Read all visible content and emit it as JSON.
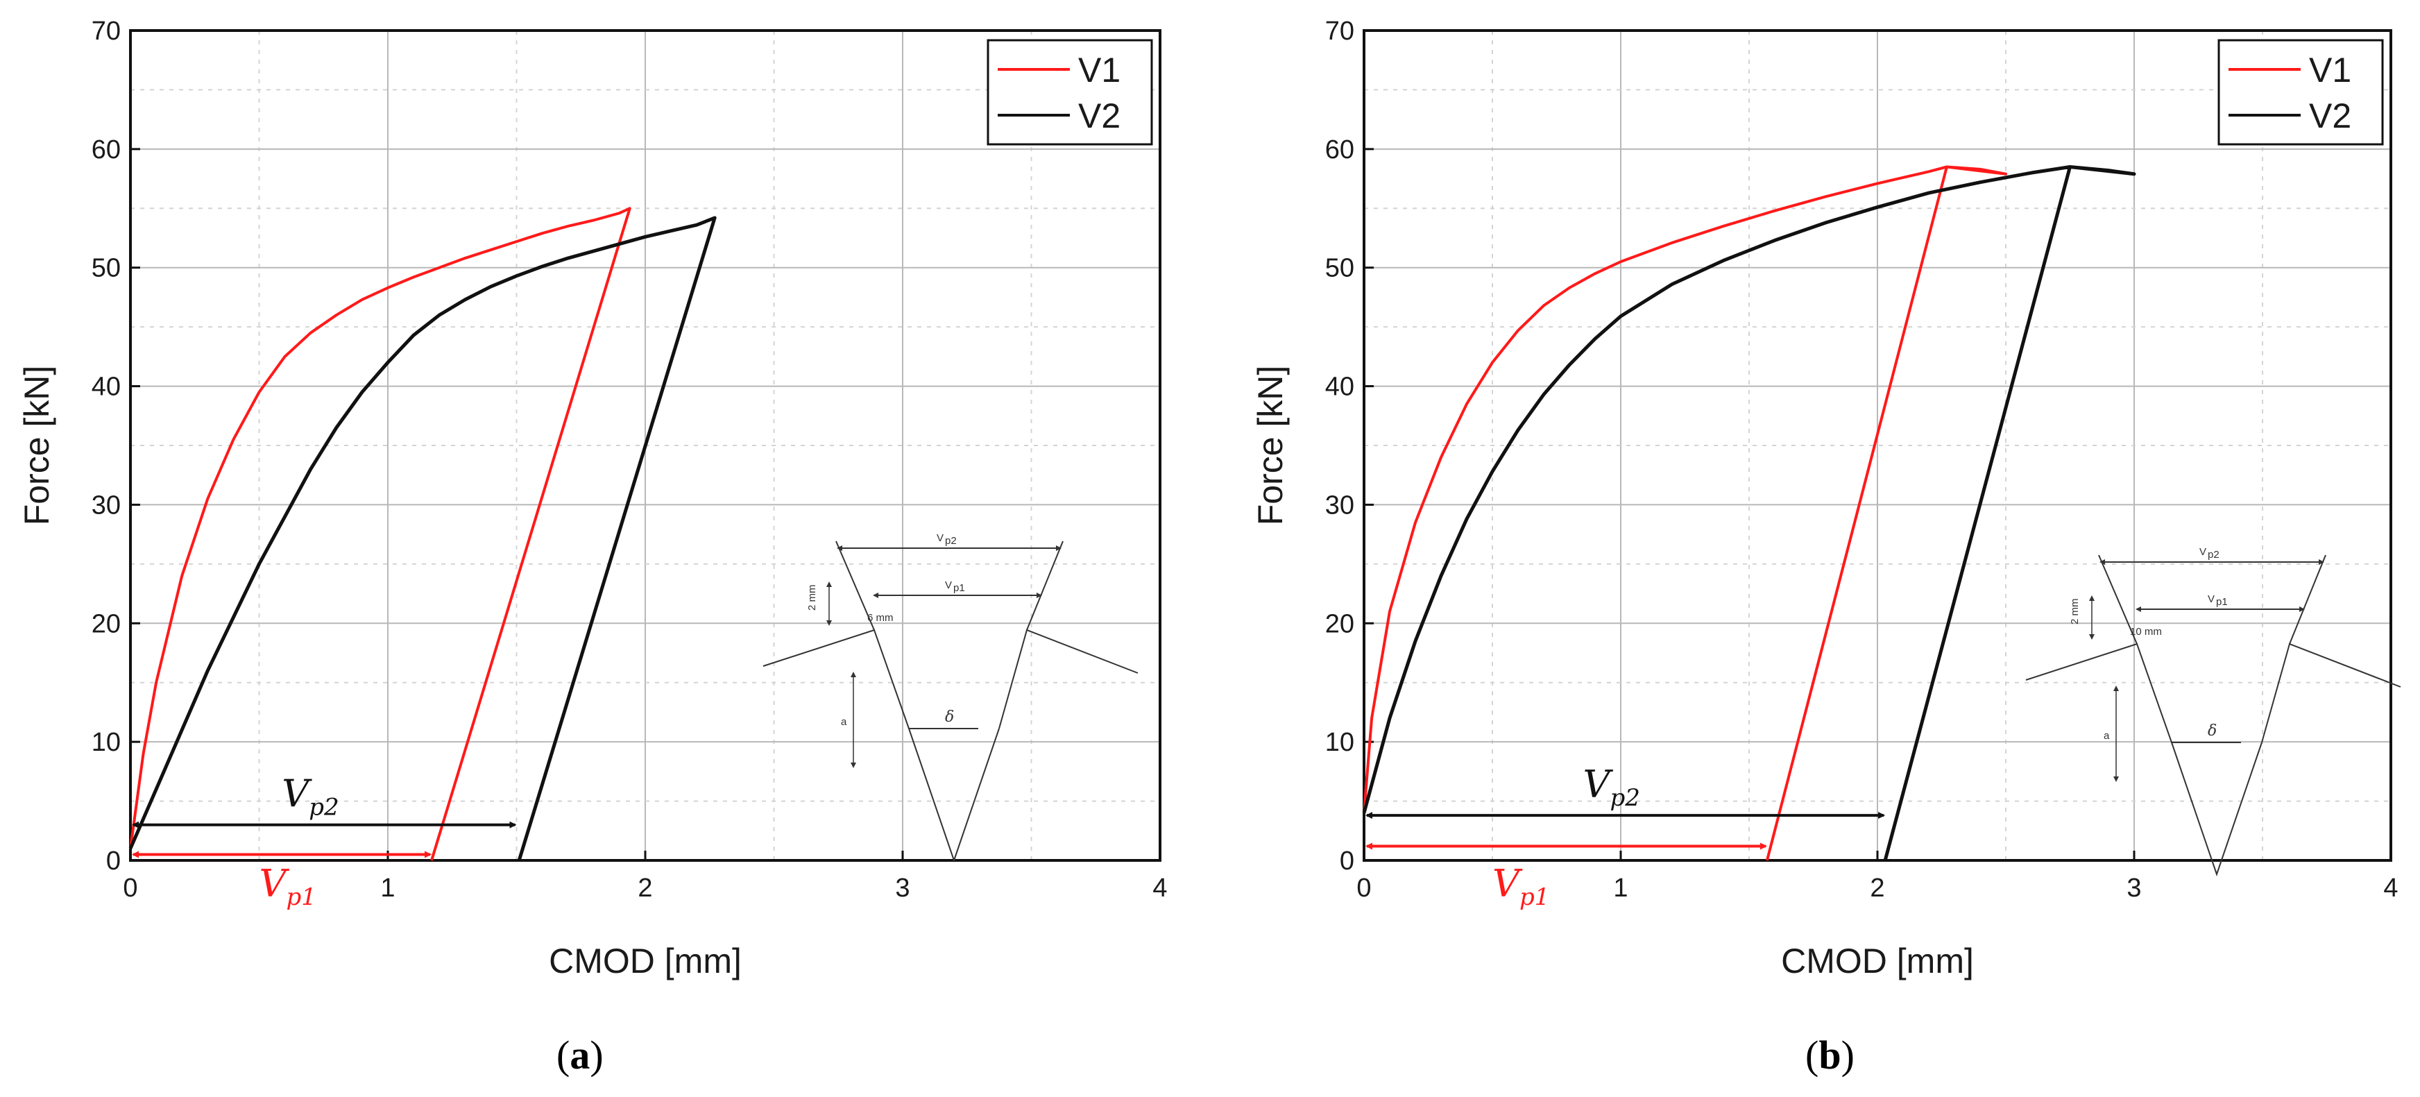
{
  "colors": {
    "v1": "#ff1a1a",
    "v2": "#111111",
    "grid": "#b8b8b8"
  },
  "chart_data": [
    {
      "type": "line",
      "caption_letter": "a",
      "xlabel": "CMOD [mm]",
      "ylabel": "Force [kN]",
      "xlim": [
        0,
        4
      ],
      "ylim": [
        0,
        70
      ],
      "xticks": [
        0,
        1,
        2,
        3,
        4
      ],
      "yticks": [
        0,
        10,
        20,
        30,
        40,
        50,
        60,
        70
      ],
      "grid": true,
      "legend": "top-right",
      "series": [
        {
          "name": "V1",
          "x": [
            0,
            0.05,
            0.1,
            0.2,
            0.3,
            0.4,
            0.5,
            0.6,
            0.7,
            0.8,
            0.9,
            1.0,
            1.1,
            1.2,
            1.3,
            1.4,
            1.5,
            1.6,
            1.7,
            1.8,
            1.9,
            1.94,
            1.17
          ],
          "y": [
            1,
            9,
            15,
            24,
            30.5,
            35.5,
            39.5,
            42.5,
            44.5,
            46,
            47.3,
            48.3,
            49.2,
            50,
            50.8,
            51.5,
            52.2,
            52.9,
            53.5,
            54,
            54.6,
            55,
            0
          ]
        },
        {
          "name": "V2",
          "x": [
            0,
            0.1,
            0.2,
            0.3,
            0.4,
            0.5,
            0.6,
            0.7,
            0.8,
            0.9,
            1.0,
            1.1,
            1.2,
            1.3,
            1.4,
            1.5,
            1.6,
            1.7,
            1.8,
            1.9,
            2.0,
            2.1,
            2.2,
            2.27,
            1.51
          ],
          "y": [
            1,
            6,
            11,
            16,
            20.5,
            25,
            29,
            33,
            36.5,
            39.5,
            42,
            44.3,
            46,
            47.3,
            48.4,
            49.3,
            50.1,
            50.8,
            51.4,
            52,
            52.6,
            53.1,
            53.6,
            54.2,
            0
          ]
        }
      ],
      "annotations": {
        "vp2": {
          "label": "V",
          "sub": "p2",
          "x_from": 0,
          "x_to": 1.5,
          "y": 3
        },
        "vp1": {
          "label": "V",
          "sub": "p1",
          "x_from": 0,
          "x_to": 1.17,
          "y": 0.5
        }
      },
      "inset": {
        "vp2": "V",
        "vp2_sub": "p2",
        "vp1": "V",
        "vp1_sub": "p1",
        "dim1": "2 mm",
        "dim2": "6 mm",
        "a": "a",
        "delta": "δ"
      }
    },
    {
      "type": "line",
      "caption_letter": "b",
      "xlabel": "CMOD [mm]",
      "ylabel": "Force [kN]",
      "xlim": [
        0,
        4
      ],
      "ylim": [
        0,
        70
      ],
      "xticks": [
        0,
        1,
        2,
        3,
        4
      ],
      "yticks": [
        0,
        10,
        20,
        30,
        40,
        50,
        60,
        70
      ],
      "grid": true,
      "legend": "top-right",
      "series": [
        {
          "name": "V1",
          "x": [
            0,
            0.03,
            0.1,
            0.2,
            0.3,
            0.4,
            0.5,
            0.6,
            0.7,
            0.8,
            0.9,
            1.0,
            1.2,
            1.4,
            1.6,
            1.8,
            2.0,
            2.2,
            2.27,
            2.4,
            2.5,
            2.27,
            1.57
          ],
          "y": [
            4,
            12,
            21,
            28.5,
            34,
            38.5,
            42,
            44.7,
            46.8,
            48.3,
            49.5,
            50.5,
            52.1,
            53.5,
            54.8,
            56,
            57.1,
            58.1,
            58.5,
            58.3,
            57.9,
            58.5,
            0
          ]
        },
        {
          "name": "V2",
          "x": [
            0,
            0.1,
            0.2,
            0.3,
            0.4,
            0.5,
            0.6,
            0.7,
            0.8,
            0.9,
            1.0,
            1.2,
            1.4,
            1.6,
            1.8,
            2.0,
            2.2,
            2.4,
            2.6,
            2.75,
            2.9,
            3.0,
            2.75,
            2.03
          ],
          "y": [
            4,
            12,
            18.5,
            24,
            28.8,
            32.8,
            36.3,
            39.3,
            41.8,
            44,
            45.9,
            48.6,
            50.6,
            52.3,
            53.8,
            55.1,
            56.3,
            57.2,
            58,
            58.5,
            58.2,
            57.9,
            58.5,
            0
          ]
        }
      ],
      "annotations": {
        "vp2": {
          "label": "V",
          "sub": "p2",
          "x_from": 0,
          "x_to": 2.03,
          "y": 3.8
        },
        "vp1": {
          "label": "V",
          "sub": "p1",
          "x_from": 0,
          "x_to": 1.57,
          "y": 1.2
        }
      },
      "inset": {
        "vp2": "V",
        "vp2_sub": "p2",
        "vp1": "V",
        "vp1_sub": "p1",
        "dim1": "2 mm",
        "dim2": "10 mm",
        "a": "a",
        "delta": "δ"
      }
    }
  ]
}
